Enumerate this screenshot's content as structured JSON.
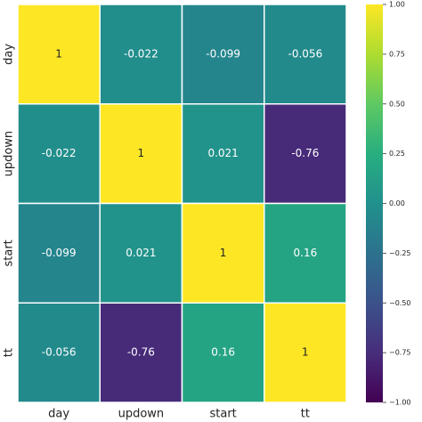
{
  "chart_data": {
    "type": "heatmap",
    "xcategories": [
      "day",
      "updown",
      "start",
      "tt"
    ],
    "ycategories": [
      "day",
      "updown",
      "start",
      "tt"
    ],
    "values": [
      [
        1,
        -0.022,
        -0.099,
        -0.056
      ],
      [
        -0.022,
        1,
        0.021,
        -0.76
      ],
      [
        -0.099,
        0.021,
        1,
        0.16
      ],
      [
        -0.056,
        -0.76,
        0.16,
        1
      ]
    ],
    "colormap": "viridis",
    "zlim": [
      -1,
      1
    ],
    "zticks": [
      {
        "value": -1,
        "label": "−1.00"
      },
      {
        "value": -0.75,
        "label": "−0.75"
      },
      {
        "value": -0.5,
        "label": "−0.50"
      },
      {
        "value": -0.25,
        "label": "−0.25"
      },
      {
        "value": 0,
        "label": "0.00"
      },
      {
        "value": 0.25,
        "label": "0.25"
      },
      {
        "value": 0.5,
        "label": "0.50"
      },
      {
        "value": 0.75,
        "label": "0.75"
      },
      {
        "value": 1,
        "label": "1.00"
      }
    ],
    "annotate": true
  }
}
